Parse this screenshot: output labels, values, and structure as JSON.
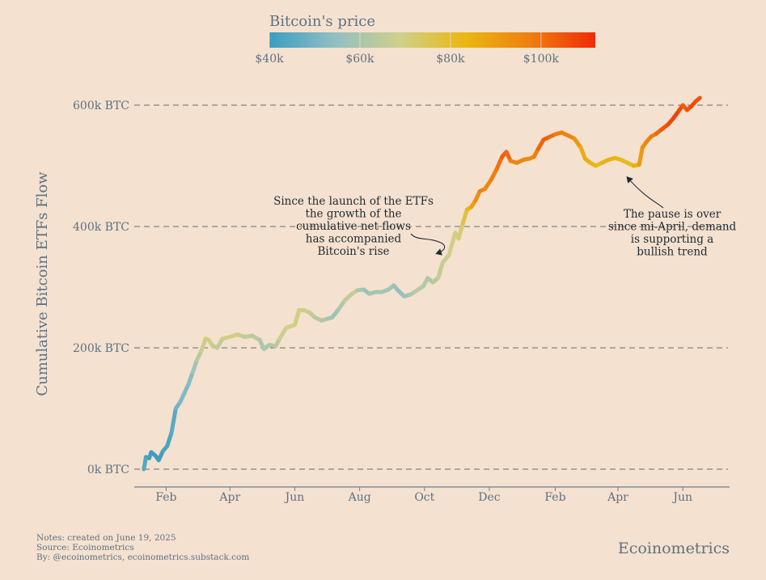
{
  "chart_data": {
    "type": "line",
    "ylabel": "Cumulative Bitcoin ETFs Flow",
    "legend": {
      "title": "Bitcoin's price",
      "placement": "top-center",
      "ticks": [
        "$40k",
        "$60k",
        "$80k",
        "$100k"
      ],
      "tick_values": [
        40000,
        60000,
        80000,
        100000
      ],
      "range": [
        40000,
        112000
      ],
      "colors": [
        "#3a9dc1",
        "#91bfc3",
        "#cfd08a",
        "#e9b812",
        "#ef7f10",
        "#f12a08"
      ]
    },
    "y_ticks": [
      {
        "value": 0,
        "label": "0k BTC"
      },
      {
        "value": 200000,
        "label": "200k BTC"
      },
      {
        "value": 400000,
        "label": "400k BTC"
      },
      {
        "value": 600000,
        "label": "600k BTC"
      }
    ],
    "ylim": [
      -20000,
      630000
    ],
    "x_ticks": [
      {
        "date": "2024-02-01",
        "label": "Feb"
      },
      {
        "date": "2024-04-01",
        "label": "Apr"
      },
      {
        "date": "2024-06-01",
        "label": "Jun"
      },
      {
        "date": "2024-08-01",
        "label": "Aug"
      },
      {
        "date": "2024-10-01",
        "label": "Oct"
      },
      {
        "date": "2024-12-01",
        "label": "Dec"
      },
      {
        "date": "2025-02-01",
        "label": "Feb"
      },
      {
        "date": "2025-04-01",
        "label": "Apr"
      },
      {
        "date": "2025-06-01",
        "label": "Jun"
      }
    ],
    "xlim": [
      "2024-01-02",
      "2025-07-15"
    ],
    "grid": "horizontal-dashed",
    "series": [
      {
        "points": [
          {
            "date": "2024-01-11",
            "value": 0,
            "price": 46000
          },
          {
            "date": "2024-01-13",
            "value": 20000,
            "price": 43000
          },
          {
            "date": "2024-01-16",
            "value": 18000,
            "price": 42500
          },
          {
            "date": "2024-01-18",
            "value": 28000,
            "price": 41000
          },
          {
            "date": "2024-01-22",
            "value": 22000,
            "price": 39500
          },
          {
            "date": "2024-01-25",
            "value": 15000,
            "price": 40000
          },
          {
            "date": "2024-01-29",
            "value": 30000,
            "price": 42000
          },
          {
            "date": "2024-02-02",
            "value": 38000,
            "price": 43000
          },
          {
            "date": "2024-02-06",
            "value": 60000,
            "price": 43000
          },
          {
            "date": "2024-02-10",
            "value": 100000,
            "price": 47500
          },
          {
            "date": "2024-02-14",
            "value": 110000,
            "price": 51500
          },
          {
            "date": "2024-02-18",
            "value": 125000,
            "price": 52000
          },
          {
            "date": "2024-02-22",
            "value": 140000,
            "price": 51500
          },
          {
            "date": "2024-02-26",
            "value": 160000,
            "price": 54000
          },
          {
            "date": "2024-03-01",
            "value": 180000,
            "price": 62000
          },
          {
            "date": "2024-03-05",
            "value": 195000,
            "price": 66000
          },
          {
            "date": "2024-03-09",
            "value": 215000,
            "price": 68500
          },
          {
            "date": "2024-03-12",
            "value": 213000,
            "price": 72000
          },
          {
            "date": "2024-03-16",
            "value": 203000,
            "price": 68000
          },
          {
            "date": "2024-03-20",
            "value": 200000,
            "price": 63000
          },
          {
            "date": "2024-03-25",
            "value": 215000,
            "price": 67000
          },
          {
            "date": "2024-04-01",
            "value": 218000,
            "price": 69500
          },
          {
            "date": "2024-04-08",
            "value": 222000,
            "price": 71000
          },
          {
            "date": "2024-04-15",
            "value": 218000,
            "price": 63500
          },
          {
            "date": "2024-04-22",
            "value": 220000,
            "price": 66000
          },
          {
            "date": "2024-04-29",
            "value": 213000,
            "price": 63000
          },
          {
            "date": "2024-05-03",
            "value": 198000,
            "price": 58000
          },
          {
            "date": "2024-05-08",
            "value": 205000,
            "price": 62000
          },
          {
            "date": "2024-05-14",
            "value": 203000,
            "price": 61500
          },
          {
            "date": "2024-05-18",
            "value": 216000,
            "price": 67000
          },
          {
            "date": "2024-05-24",
            "value": 233000,
            "price": 69000
          },
          {
            "date": "2024-06-01",
            "value": 238000,
            "price": 67500
          },
          {
            "date": "2024-06-05",
            "value": 262000,
            "price": 71000
          },
          {
            "date": "2024-06-10",
            "value": 262000,
            "price": 69500
          },
          {
            "date": "2024-06-15",
            "value": 258000,
            "price": 66000
          },
          {
            "date": "2024-06-20",
            "value": 250000,
            "price": 65000
          },
          {
            "date": "2024-06-26",
            "value": 245000,
            "price": 61500
          },
          {
            "date": "2024-07-02",
            "value": 248000,
            "price": 62000
          },
          {
            "date": "2024-07-06",
            "value": 250000,
            "price": 57000
          },
          {
            "date": "2024-07-12",
            "value": 263000,
            "price": 58000
          },
          {
            "date": "2024-07-18",
            "value": 278000,
            "price": 64500
          },
          {
            "date": "2024-07-24",
            "value": 288000,
            "price": 66000
          },
          {
            "date": "2024-07-30",
            "value": 295000,
            "price": 66500
          },
          {
            "date": "2024-08-05",
            "value": 296000,
            "price": 54000
          },
          {
            "date": "2024-08-10",
            "value": 289000,
            "price": 60000
          },
          {
            "date": "2024-08-16",
            "value": 292000,
            "price": 59000
          },
          {
            "date": "2024-08-22",
            "value": 292000,
            "price": 60500
          },
          {
            "date": "2024-08-28",
            "value": 296000,
            "price": 59500
          },
          {
            "date": "2024-09-02",
            "value": 303000,
            "price": 58000
          },
          {
            "date": "2024-09-06",
            "value": 295000,
            "price": 54000
          },
          {
            "date": "2024-09-12",
            "value": 285000,
            "price": 56000
          },
          {
            "date": "2024-09-18",
            "value": 288000,
            "price": 60000
          },
          {
            "date": "2024-09-24",
            "value": 295000,
            "price": 63500
          },
          {
            "date": "2024-09-30",
            "value": 302000,
            "price": 64000
          },
          {
            "date": "2024-10-04",
            "value": 315000,
            "price": 61000
          },
          {
            "date": "2024-10-09",
            "value": 308000,
            "price": 62000
          },
          {
            "date": "2024-10-14",
            "value": 316000,
            "price": 65000
          },
          {
            "date": "2024-10-18",
            "value": 340000,
            "price": 67500
          },
          {
            "date": "2024-10-24",
            "value": 353000,
            "price": 67000
          },
          {
            "date": "2024-10-30",
            "value": 390000,
            "price": 71000
          },
          {
            "date": "2024-11-02",
            "value": 380000,
            "price": 69000
          },
          {
            "date": "2024-11-06",
            "value": 405000,
            "price": 74000
          },
          {
            "date": "2024-11-10",
            "value": 428000,
            "price": 80000
          },
          {
            "date": "2024-11-14",
            "value": 432000,
            "price": 88000
          },
          {
            "date": "2024-11-18",
            "value": 443000,
            "price": 90000
          },
          {
            "date": "2024-11-22",
            "value": 458000,
            "price": 98000
          },
          {
            "date": "2024-11-27",
            "value": 462000,
            "price": 95000
          },
          {
            "date": "2024-12-03",
            "value": 478000,
            "price": 96000
          },
          {
            "date": "2024-12-08",
            "value": 495000,
            "price": 99000
          },
          {
            "date": "2024-12-13",
            "value": 515000,
            "price": 100500
          },
          {
            "date": "2024-12-17",
            "value": 523000,
            "price": 106000
          },
          {
            "date": "2024-12-21",
            "value": 508000,
            "price": 97000
          },
          {
            "date": "2024-12-27",
            "value": 505000,
            "price": 95000
          },
          {
            "date": "2025-01-02",
            "value": 510000,
            "price": 96500
          },
          {
            "date": "2025-01-08",
            "value": 512000,
            "price": 95000
          },
          {
            "date": "2025-01-12",
            "value": 515000,
            "price": 94500
          },
          {
            "date": "2025-01-16",
            "value": 528000,
            "price": 100000
          },
          {
            "date": "2025-01-21",
            "value": 543000,
            "price": 104000
          },
          {
            "date": "2025-01-27",
            "value": 548000,
            "price": 102000
          },
          {
            "date": "2025-02-01",
            "value": 552000,
            "price": 100000
          },
          {
            "date": "2025-02-07",
            "value": 555000,
            "price": 97000
          },
          {
            "date": "2025-02-13",
            "value": 550000,
            "price": 96500
          },
          {
            "date": "2025-02-19",
            "value": 545000,
            "price": 96000
          },
          {
            "date": "2025-02-25",
            "value": 530000,
            "price": 88000
          },
          {
            "date": "2025-03-01",
            "value": 512000,
            "price": 84000
          },
          {
            "date": "2025-03-06",
            "value": 505000,
            "price": 88000
          },
          {
            "date": "2025-03-11",
            "value": 500000,
            "price": 80000
          },
          {
            "date": "2025-03-17",
            "value": 505000,
            "price": 83000
          },
          {
            "date": "2025-03-23",
            "value": 510000,
            "price": 86000
          },
          {
            "date": "2025-03-29",
            "value": 513000,
            "price": 83000
          },
          {
            "date": "2025-04-04",
            "value": 510000,
            "price": 83500
          },
          {
            "date": "2025-04-10",
            "value": 505000,
            "price": 79500
          },
          {
            "date": "2025-04-16",
            "value": 500000,
            "price": 84000
          },
          {
            "date": "2025-04-21",
            "value": 502000,
            "price": 87500
          },
          {
            "date": "2025-04-24",
            "value": 530000,
            "price": 93500
          },
          {
            "date": "2025-04-28",
            "value": 540000,
            "price": 95000
          },
          {
            "date": "2025-05-02",
            "value": 548000,
            "price": 97000
          },
          {
            "date": "2025-05-07",
            "value": 553000,
            "price": 99000
          },
          {
            "date": "2025-05-12",
            "value": 560000,
            "price": 104000
          },
          {
            "date": "2025-05-18",
            "value": 568000,
            "price": 105000
          },
          {
            "date": "2025-05-23",
            "value": 578000,
            "price": 109000
          },
          {
            "date": "2025-05-28",
            "value": 590000,
            "price": 108000
          },
          {
            "date": "2025-06-01",
            "value": 600000,
            "price": 105000
          },
          {
            "date": "2025-06-05",
            "value": 592000,
            "price": 102000
          },
          {
            "date": "2025-06-09",
            "value": 598000,
            "price": 108000
          },
          {
            "date": "2025-06-13",
            "value": 606000,
            "price": 106000
          },
          {
            "date": "2025-06-17",
            "value": 612000,
            "price": 104500
          }
        ]
      }
    ],
    "annotations": [
      {
        "id": "launch",
        "lines": [
          "Since the launch of the ETFs",
          "the growth of the",
          "cumulative net flows",
          "has accompanied",
          "Bitcoin's rise"
        ],
        "points_to": {
          "date": "2024-10-12",
          "value": 350000
        }
      },
      {
        "id": "pause",
        "lines": [
          "The pause is over",
          "since mi-April, demand",
          "is supporting a",
          "bullish trend"
        ],
        "points_to": {
          "date": "2025-04-08",
          "value": 495000
        }
      }
    ]
  },
  "footer": {
    "notes": "Notes: created on June 19, 2025",
    "source": "Source: Ecoinometrics",
    "by": "By: @ecoinometrics, ecoinometrics.substack.com",
    "brand": "Ecoinometrics"
  }
}
